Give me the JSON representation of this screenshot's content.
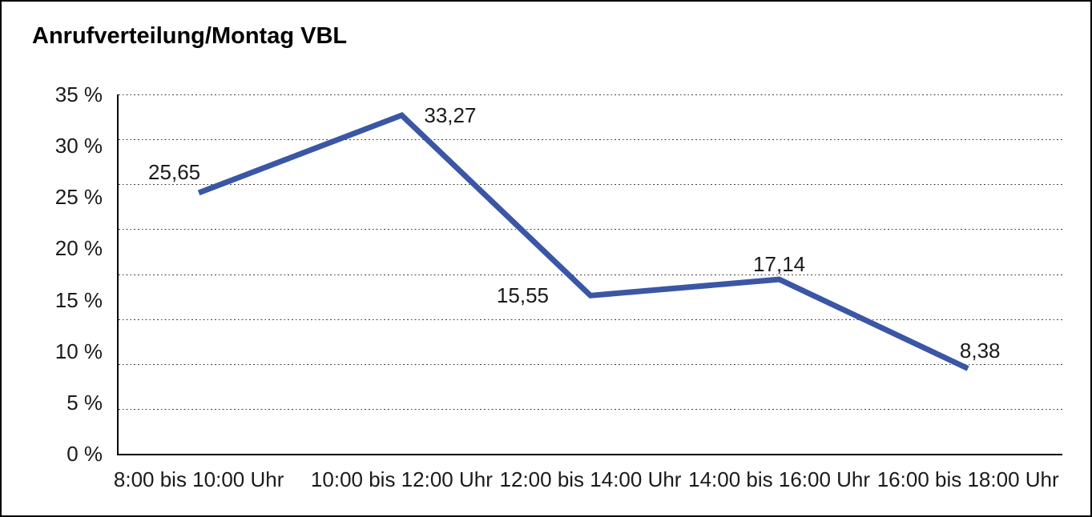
{
  "title": "Anrufverteilung/Montag VBL",
  "chart_data": {
    "type": "line",
    "title": "Anrufverteilung/Montag VBL",
    "categories": [
      "8:00 bis 10:00 Uhr",
      "10:00 bis 12:00 Uhr",
      "12:00 bis 14:00 Uhr",
      "14:00 bis 16:00 Uhr",
      "16:00 bis 18:00 Uhr"
    ],
    "values": [
      25.65,
      33.27,
      15.55,
      17.14,
      8.38
    ],
    "point_labels": [
      "25,65",
      "33,27",
      "15,55",
      "17,14",
      "8,38"
    ],
    "ytick_labels": [
      "0 %",
      "5 %",
      "10 %",
      "15 %",
      "20 %",
      "25 %",
      "30 %",
      "35 %"
    ],
    "xlabel": "",
    "ylabel": "",
    "ylim": [
      0,
      35
    ],
    "grid": {
      "horizontal_divisions": 8,
      "style": "dotted"
    },
    "legend": "none",
    "line_color": "#3A56A5",
    "axis_color": "#000000",
    "text_color": "#1a1a1a"
  }
}
